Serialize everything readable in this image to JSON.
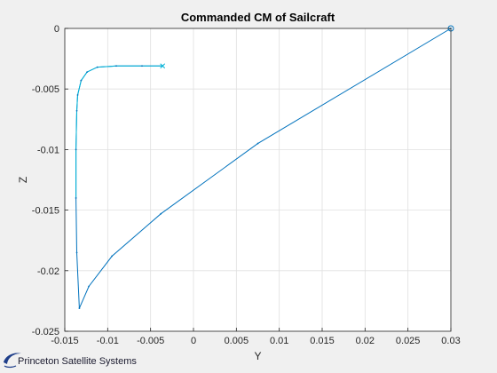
{
  "chart_data": {
    "type": "line",
    "title": "Commanded CM of Sailcraft",
    "xlabel": "Y",
    "ylabel": "Z",
    "xlim": [
      -0.015,
      0.03
    ],
    "ylim": [
      -0.025,
      0
    ],
    "xticks": [
      -0.015,
      -0.01,
      -0.005,
      0,
      0.005,
      0.01,
      0.015,
      0.02,
      0.025,
      0.03
    ],
    "xtick_labels": [
      "-0.015",
      "-0.01",
      "-0.005",
      "0",
      "0.005",
      "0.01",
      "0.015",
      "0.02",
      "0.025",
      "0.03"
    ],
    "yticks": [
      0,
      -0.005,
      -0.01,
      -0.015,
      -0.02,
      -0.025
    ],
    "ytick_labels": [
      "0",
      "-0.005",
      "-0.01",
      "-0.015",
      "-0.02",
      "-0.025"
    ],
    "grid": true,
    "colors": {
      "line": "#0072bd",
      "path_end": "#00b4d8",
      "grid": "#e0e0e0",
      "axes_bg": "#ffffff",
      "figure_bg": "#f0f0f0"
    },
    "series": [
      {
        "x": [
          0.03,
          0.0075,
          -0.0038,
          -0.0095,
          -0.0122,
          -0.0133,
          -0.0136,
          -0.0137,
          -0.0137,
          -0.0136,
          -0.0135,
          -0.0131,
          -0.0124,
          -0.0112,
          -0.009,
          -0.006,
          -0.0036
        ],
        "y": [
          0,
          -0.0095,
          -0.0153,
          -0.0188,
          -0.0213,
          -0.0231,
          -0.0185,
          -0.014,
          -0.01,
          -0.0068,
          -0.0055,
          -0.0043,
          -0.0036,
          -0.0032,
          -0.0031,
          -0.0031,
          -0.0031
        ]
      }
    ],
    "start_marker": {
      "x": 0.03,
      "y": 0,
      "shape": "circle"
    },
    "end_marker": {
      "x": -0.0036,
      "y": -0.0031,
      "shape": "x"
    }
  },
  "logo": {
    "text": "Princeton Satellite Systems",
    "colors": {
      "swoosh": "#1f3f8a",
      "text": "#1a1a2e"
    }
  }
}
